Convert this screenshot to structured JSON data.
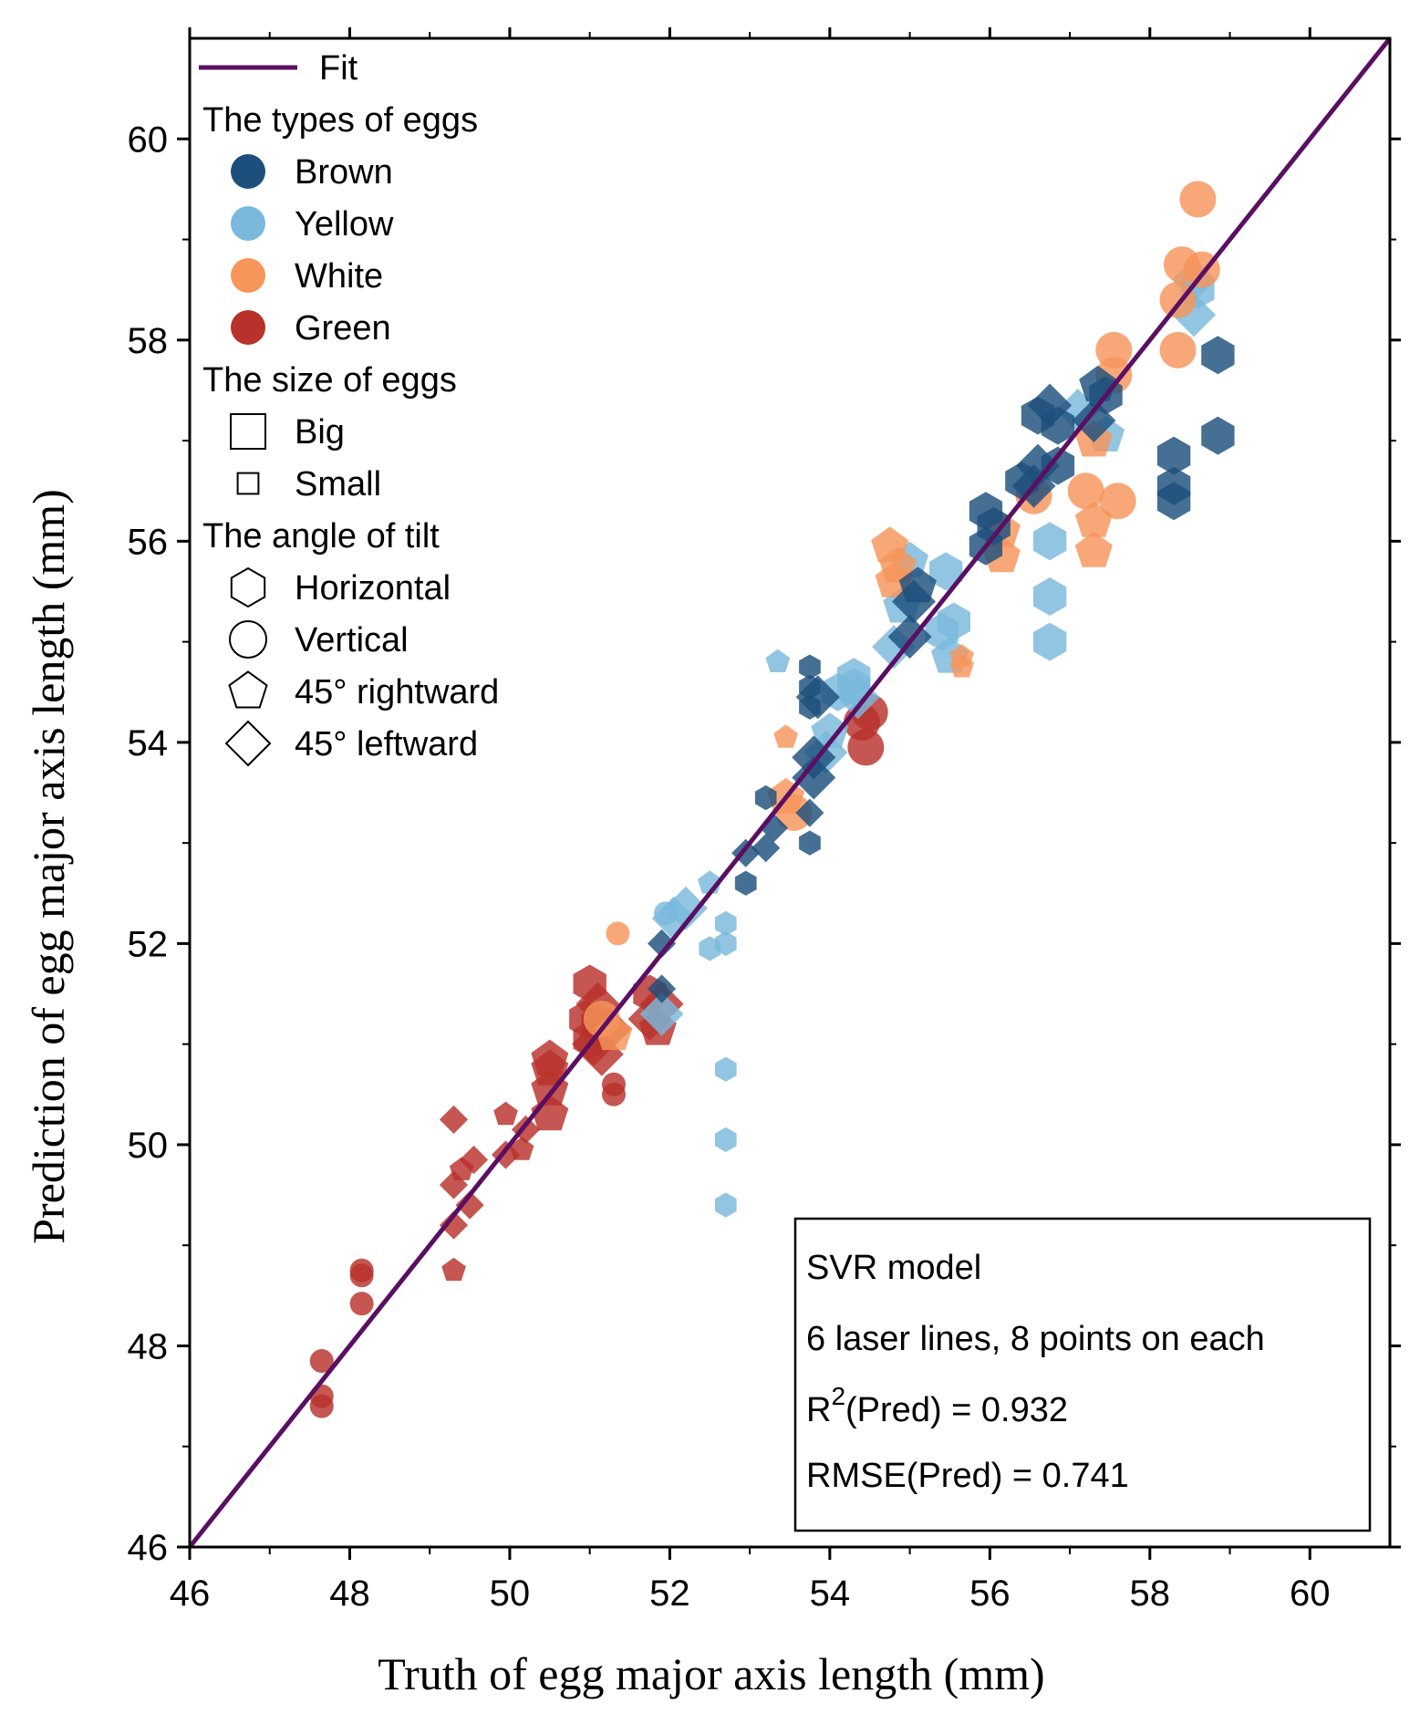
{
  "chart_data": {
    "type": "scatter",
    "xlabel": "Truth of egg major axis length (mm)",
    "ylabel": "Prediction of egg major axis length (mm)",
    "xlim": [
      46,
      61
    ],
    "ylim": [
      46,
      61
    ],
    "x_ticks": [
      46,
      48,
      50,
      52,
      54,
      56,
      58,
      60
    ],
    "y_ticks": [
      46,
      48,
      50,
      52,
      54,
      56,
      58,
      60
    ],
    "fit_line": {
      "name": "Fit",
      "color": "#5a0f63",
      "x": [
        46,
        61
      ],
      "y": [
        46,
        61
      ]
    },
    "legend": {
      "fit_label": "Fit",
      "types_title": "The types of eggs",
      "types": [
        {
          "label": "Brown",
          "color": "#1d4f7c"
        },
        {
          "label": "Yellow",
          "color": "#7ab8dc"
        },
        {
          "label": "White",
          "color": "#f7955a"
        },
        {
          "label": "Green",
          "color": "#b8312b"
        }
      ],
      "sizes_title": "The size of eggs",
      "sizes": [
        {
          "label": "Big",
          "scale": 1.0
        },
        {
          "label": "Small",
          "scale": 0.6
        }
      ],
      "angles_title": "The angle of tilt",
      "angles": [
        {
          "label": "Horizontal",
          "shape": "hexagon"
        },
        {
          "label": "Vertical",
          "shape": "circle"
        },
        {
          "label": "45° rightward",
          "shape": "pentagon"
        },
        {
          "label": "45° leftward",
          "shape": "diamond"
        }
      ]
    },
    "stats_box": {
      "model": "SVR model",
      "config": "6 laser lines, 8 points on each",
      "r2_prefix": "R",
      "r2_sup": "2",
      "r2_suffix": "(Pred) = 0.932",
      "rmse": "RMSE(Pred) = 0.741"
    },
    "series": [
      {
        "name": "Green",
        "color": "#b8312b",
        "points": [
          [
            47.65,
            47.85,
            "circle",
            "small"
          ],
          [
            47.65,
            47.5,
            "circle",
            "small"
          ],
          [
            47.65,
            47.4,
            "circle",
            "small"
          ],
          [
            48.15,
            48.75,
            "circle",
            "small"
          ],
          [
            48.15,
            48.7,
            "circle",
            "small"
          ],
          [
            48.15,
            48.42,
            "circle",
            "small"
          ],
          [
            49.3,
            48.75,
            "pentagon",
            "small"
          ],
          [
            49.3,
            49.2,
            "diamond",
            "small"
          ],
          [
            49.3,
            49.6,
            "diamond",
            "small"
          ],
          [
            49.3,
            50.25,
            "diamond",
            "small"
          ],
          [
            49.4,
            49.75,
            "pentagon",
            "small"
          ],
          [
            49.5,
            49.4,
            "diamond",
            "small"
          ],
          [
            49.55,
            49.85,
            "diamond",
            "small"
          ],
          [
            49.95,
            49.9,
            "diamond",
            "small"
          ],
          [
            49.95,
            50.3,
            "pentagon",
            "small"
          ],
          [
            50.15,
            49.95,
            "pentagon",
            "small"
          ],
          [
            50.2,
            50.15,
            "diamond",
            "small"
          ],
          [
            50.5,
            50.3,
            "pentagon",
            "big"
          ],
          [
            50.5,
            50.55,
            "pentagon",
            "big"
          ],
          [
            50.5,
            50.75,
            "pentagon",
            "big"
          ],
          [
            50.5,
            50.85,
            "pentagon",
            "big"
          ],
          [
            50.95,
            51.25,
            "hexagon",
            "big"
          ],
          [
            51.0,
            51.05,
            "hexagon",
            "big"
          ],
          [
            51.0,
            51.6,
            "hexagon",
            "big"
          ],
          [
            51.05,
            51.0,
            "diamond",
            "big"
          ],
          [
            51.1,
            51.4,
            "diamond",
            "big"
          ],
          [
            51.1,
            51.2,
            "hexagon",
            "big"
          ],
          [
            51.15,
            50.9,
            "diamond",
            "big"
          ],
          [
            51.25,
            51.15,
            "diamond",
            "big"
          ],
          [
            51.3,
            50.5,
            "circle",
            "small"
          ],
          [
            51.3,
            50.6,
            "circle",
            "small"
          ],
          [
            51.75,
            51.5,
            "hexagon",
            "big"
          ],
          [
            51.75,
            51.25,
            "diamond",
            "big"
          ],
          [
            51.85,
            51.15,
            "pentagon",
            "big"
          ],
          [
            51.9,
            51.4,
            "diamond",
            "big"
          ],
          [
            54.4,
            54.2,
            "circle",
            "big"
          ],
          [
            54.45,
            53.95,
            "circle",
            "big"
          ],
          [
            54.5,
            54.3,
            "circle",
            "big"
          ]
        ]
      },
      {
        "name": "Yellow",
        "color": "#7ab8dc",
        "points": [
          [
            51.9,
            51.3,
            "diamond",
            "big"
          ],
          [
            51.95,
            52.3,
            "circle",
            "small"
          ],
          [
            52.05,
            52.25,
            "diamond",
            "big"
          ],
          [
            52.2,
            52.35,
            "diamond",
            "big"
          ],
          [
            52.5,
            51.95,
            "hexagon",
            "small"
          ],
          [
            52.5,
            52.6,
            "pentagon",
            "small"
          ],
          [
            52.7,
            52.0,
            "hexagon",
            "small"
          ],
          [
            52.7,
            52.2,
            "hexagon",
            "small"
          ],
          [
            52.7,
            50.75,
            "hexagon",
            "small"
          ],
          [
            52.7,
            50.05,
            "hexagon",
            "small"
          ],
          [
            52.7,
            49.4,
            "hexagon",
            "small"
          ],
          [
            53.35,
            54.8,
            "pentagon",
            "small"
          ],
          [
            53.95,
            53.9,
            "diamond",
            "big"
          ],
          [
            54.0,
            54.1,
            "pentagon",
            "big"
          ],
          [
            54.1,
            54.5,
            "hexagon",
            "big"
          ],
          [
            54.3,
            54.55,
            "hexagon",
            "big"
          ],
          [
            54.3,
            54.65,
            "hexagon",
            "big"
          ],
          [
            54.35,
            54.45,
            "diamond",
            "big"
          ],
          [
            54.8,
            54.95,
            "diamond",
            "big"
          ],
          [
            54.9,
            55.35,
            "pentagon",
            "big"
          ],
          [
            55.0,
            55.8,
            "pentagon",
            "big"
          ],
          [
            55.4,
            55.1,
            "hexagon",
            "big"
          ],
          [
            55.45,
            55.7,
            "hexagon",
            "big"
          ],
          [
            55.5,
            54.85,
            "pentagon",
            "big"
          ],
          [
            55.55,
            55.2,
            "hexagon",
            "big"
          ],
          [
            56.75,
            56.0,
            "hexagon",
            "big"
          ],
          [
            56.75,
            55.45,
            "hexagon",
            "big"
          ],
          [
            56.75,
            55.0,
            "hexagon",
            "big"
          ],
          [
            57.1,
            57.3,
            "diamond",
            "big"
          ],
          [
            57.45,
            57.05,
            "pentagon",
            "big"
          ],
          [
            58.55,
            58.25,
            "diamond",
            "big"
          ],
          [
            58.55,
            58.6,
            "diamond",
            "big"
          ],
          [
            58.6,
            58.5,
            "hexagon",
            "big"
          ]
        ]
      },
      {
        "name": "White",
        "color": "#f7955a",
        "points": [
          [
            51.15,
            51.25,
            "circle",
            "big"
          ],
          [
            51.3,
            51.1,
            "pentagon",
            "big"
          ],
          [
            51.35,
            52.1,
            "circle",
            "small"
          ],
          [
            53.45,
            54.05,
            "pentagon",
            "small"
          ],
          [
            53.45,
            53.45,
            "pentagon",
            "big"
          ],
          [
            53.55,
            53.3,
            "circle",
            "big"
          ],
          [
            54.75,
            55.95,
            "pentagon",
            "big"
          ],
          [
            54.8,
            55.6,
            "pentagon",
            "big"
          ],
          [
            54.85,
            55.75,
            "pentagon",
            "big"
          ],
          [
            55.65,
            54.75,
            "pentagon",
            "small"
          ],
          [
            55.65,
            54.85,
            "pentagon",
            "small"
          ],
          [
            56.15,
            55.85,
            "pentagon",
            "big"
          ],
          [
            56.15,
            56.1,
            "pentagon",
            "big"
          ],
          [
            56.55,
            56.45,
            "circle",
            "big"
          ],
          [
            57.2,
            56.5,
            "circle",
            "big"
          ],
          [
            57.3,
            55.9,
            "pentagon",
            "big"
          ],
          [
            57.3,
            56.2,
            "pentagon",
            "big"
          ],
          [
            57.3,
            57.0,
            "pentagon",
            "big"
          ],
          [
            57.6,
            56.4,
            "circle",
            "big"
          ],
          [
            57.55,
            57.65,
            "circle",
            "big"
          ],
          [
            57.55,
            57.9,
            "circle",
            "big"
          ],
          [
            58.35,
            57.9,
            "circle",
            "big"
          ],
          [
            58.35,
            58.4,
            "circle",
            "big"
          ],
          [
            58.4,
            58.75,
            "circle",
            "big"
          ],
          [
            58.65,
            58.7,
            "circle",
            "big"
          ],
          [
            58.6,
            59.4,
            "circle",
            "big"
          ]
        ]
      },
      {
        "name": "Brown",
        "color": "#1d4f7c",
        "points": [
          [
            51.9,
            51.55,
            "diamond",
            "small"
          ],
          [
            51.9,
            52.0,
            "diamond",
            "small"
          ],
          [
            52.95,
            52.6,
            "hexagon",
            "small"
          ],
          [
            52.95,
            52.9,
            "diamond",
            "small"
          ],
          [
            53.2,
            52.95,
            "diamond",
            "small"
          ],
          [
            53.2,
            53.45,
            "hexagon",
            "small"
          ],
          [
            53.3,
            53.15,
            "diamond",
            "small"
          ],
          [
            53.75,
            53.0,
            "hexagon",
            "small"
          ],
          [
            53.75,
            53.3,
            "diamond",
            "small"
          ],
          [
            53.75,
            54.35,
            "hexagon",
            "small"
          ],
          [
            53.75,
            54.55,
            "hexagon",
            "small"
          ],
          [
            53.75,
            54.75,
            "hexagon",
            "small"
          ],
          [
            53.8,
            53.65,
            "diamond",
            "big"
          ],
          [
            53.8,
            53.85,
            "diamond",
            "big"
          ],
          [
            53.85,
            54.45,
            "diamond",
            "big"
          ],
          [
            55.0,
            55.05,
            "diamond",
            "big"
          ],
          [
            55.05,
            55.4,
            "diamond",
            "big"
          ],
          [
            55.1,
            55.55,
            "pentagon",
            "big"
          ],
          [
            55.95,
            55.95,
            "hexagon",
            "big"
          ],
          [
            55.95,
            56.3,
            "hexagon",
            "big"
          ],
          [
            56.05,
            56.15,
            "hexagon",
            "big"
          ],
          [
            56.4,
            56.6,
            "hexagon",
            "big"
          ],
          [
            56.55,
            56.55,
            "diamond",
            "big"
          ],
          [
            56.6,
            56.75,
            "diamond",
            "big"
          ],
          [
            56.6,
            57.25,
            "hexagon",
            "big"
          ],
          [
            56.75,
            57.35,
            "diamond",
            "big"
          ],
          [
            56.85,
            56.75,
            "hexagon",
            "big"
          ],
          [
            56.85,
            57.15,
            "hexagon",
            "big"
          ],
          [
            57.3,
            57.2,
            "diamond",
            "big"
          ],
          [
            57.35,
            57.55,
            "pentagon",
            "big"
          ],
          [
            57.45,
            57.45,
            "hexagon",
            "big"
          ],
          [
            58.3,
            56.4,
            "hexagon",
            "big"
          ],
          [
            58.3,
            56.55,
            "hexagon",
            "big"
          ],
          [
            58.3,
            56.85,
            "hexagon",
            "big"
          ],
          [
            58.85,
            57.05,
            "hexagon",
            "big"
          ],
          [
            58.85,
            57.85,
            "hexagon",
            "big"
          ]
        ]
      }
    ]
  }
}
